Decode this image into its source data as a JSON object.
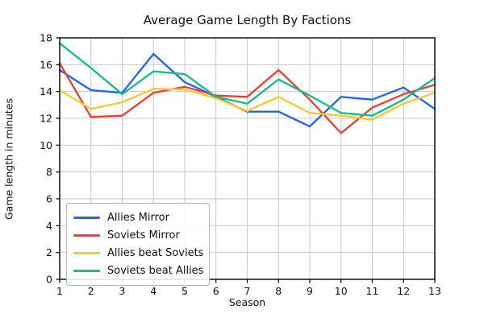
{
  "chart_data": {
    "type": "line",
    "title": "Average Game Length By Factions",
    "xlabel": "Season",
    "ylabel": "Game length in minutes",
    "x": [
      1,
      2,
      3,
      4,
      5,
      6,
      7,
      8,
      9,
      10,
      11,
      12,
      13
    ],
    "xlim": [
      1,
      13
    ],
    "ylim": [
      0,
      18
    ],
    "xticks": [
      1,
      2,
      3,
      4,
      5,
      6,
      7,
      8,
      9,
      10,
      11,
      12,
      13
    ],
    "yticks": [
      0,
      2,
      4,
      6,
      8,
      10,
      12,
      14,
      16,
      18
    ],
    "grid": true,
    "grid_color": "#c9c9c9",
    "spine_color": "#000000",
    "legend_position": "lower left",
    "series": [
      {
        "name": "Allies Mirror",
        "color": "#1a68f5",
        "values": [
          15.6,
          14.1,
          13.9,
          16.8,
          14.7,
          13.6,
          12.5,
          12.5,
          11.4,
          13.6,
          13.4,
          14.3,
          12.7
        ]
      },
      {
        "name": "Soviets Mirror",
        "color": "#f23d33",
        "values": [
          16.1,
          12.1,
          12.2,
          13.9,
          14.35,
          13.7,
          13.6,
          15.6,
          13.4,
          10.9,
          12.8,
          13.8,
          14.5
        ]
      },
      {
        "name": "Allies beat Soviets",
        "color": "#fdc72f",
        "values": [
          14.1,
          12.7,
          13.2,
          14.2,
          14.15,
          13.5,
          12.55,
          13.6,
          12.4,
          12.2,
          11.9,
          13.1,
          13.9
        ]
      },
      {
        "name": "Soviets beat Allies",
        "color": "#14bd8d",
        "values": [
          17.6,
          15.75,
          13.8,
          15.5,
          15.3,
          13.6,
          13.1,
          14.9,
          13.7,
          12.4,
          12.2,
          13.4,
          15.0
        ]
      }
    ]
  }
}
